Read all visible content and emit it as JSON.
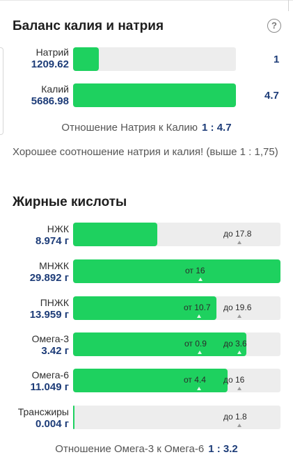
{
  "balance": {
    "title": "Баланс калия и натрия",
    "help_icon": "question-circle-icon",
    "sodium": {
      "name": "Натрий",
      "value": "1209.62",
      "ratio": "1",
      "fill": 0.16
    },
    "potassium": {
      "name": "Калий",
      "value": "5686.98",
      "ratio": "4.7",
      "fill": 1.0
    },
    "ratio_label": "Отношение Натрия к Калию",
    "ratio_value": "1 : 4.7",
    "message": "Хорошее соотношение натрия и калия! (выше 1 : 1,75)"
  },
  "fatty": {
    "title": "Жирные кислоты",
    "rows": [
      {
        "name": "НЖК",
        "value": "8.974 г",
        "fill": 0.405,
        "from": "",
        "to": "до 17.8"
      },
      {
        "name": "МНЖК",
        "value": "29.892 г",
        "fill": 1.0,
        "from": "от 16",
        "to": ""
      },
      {
        "name": "ПНЖК",
        "value": "13.959 г",
        "fill": 0.69,
        "from": "от 10.7",
        "to": "до 19.6"
      },
      {
        "name": "Омега-3",
        "value": "3.42 г",
        "fill": 0.835,
        "from": "от 0.9",
        "to": "до 3.6"
      },
      {
        "name": "Омега-6",
        "value": "11.049 г",
        "fill": 0.745,
        "from": "от 4.4",
        "to": "до 16"
      },
      {
        "name": "Трансжиры",
        "value": "0.004 г",
        "fill": 0.004,
        "from": "",
        "to": "до 1.8"
      }
    ],
    "ratio_label": "Отношение Омега-3 к Омега-6",
    "ratio_value": "1 : 3.2"
  },
  "colors": {
    "fill": "#1ed15f",
    "track": "#ededed",
    "accent": "#1d3c78"
  }
}
